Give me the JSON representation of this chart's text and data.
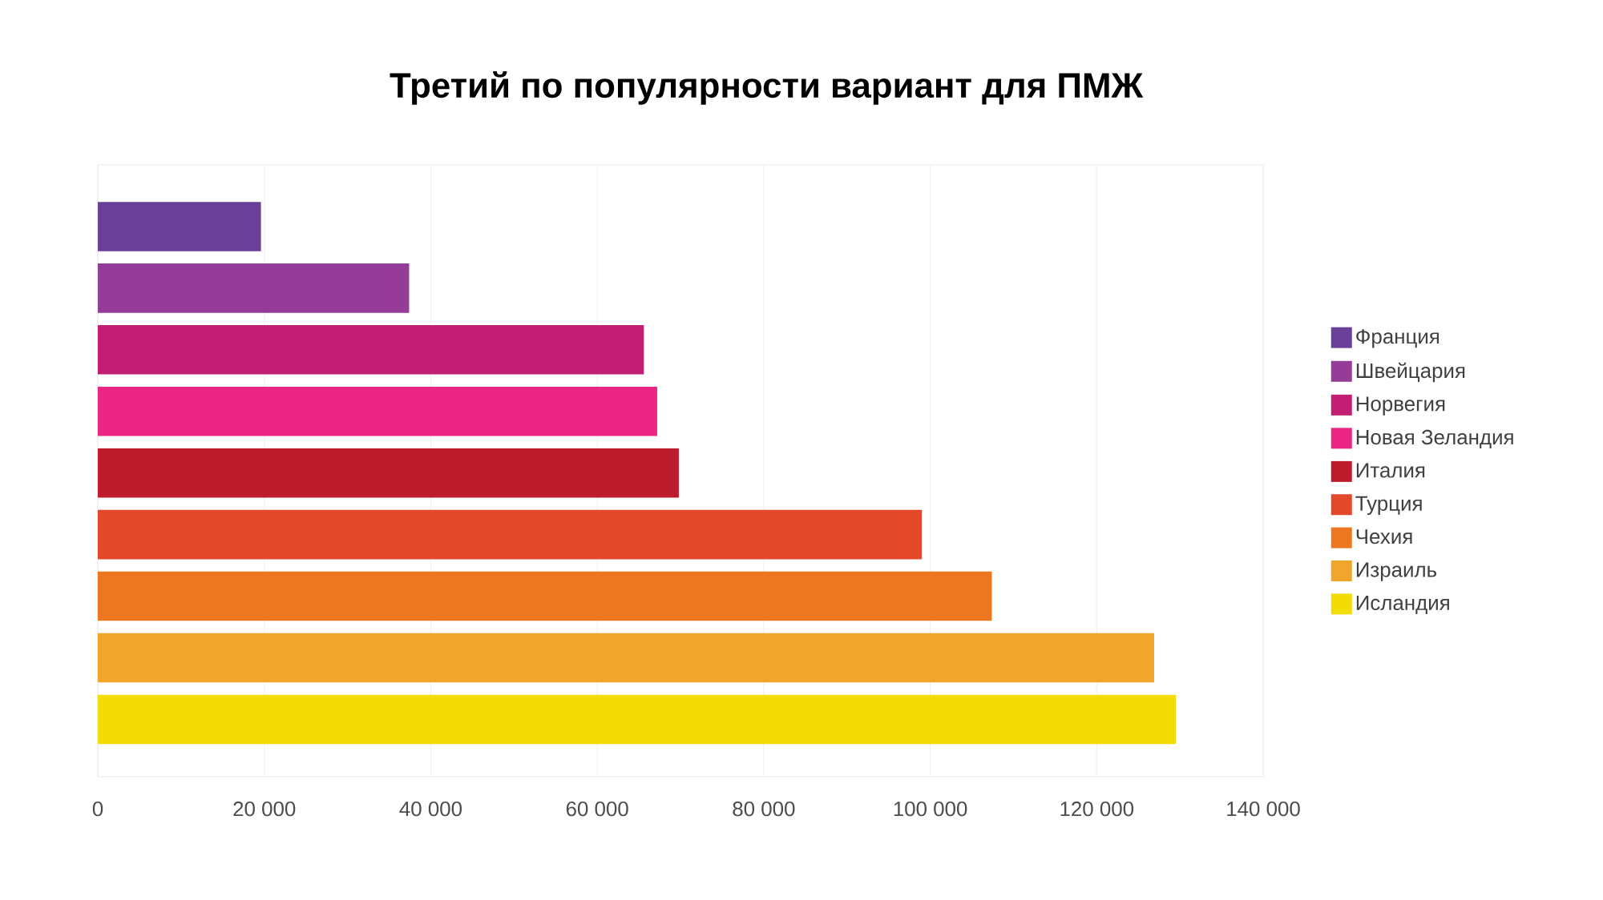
{
  "chart_data": {
    "type": "bar",
    "orientation": "horizontal",
    "title": "Третий по популярности вариант для ПМЖ",
    "categories": [
      null,
      null,
      null,
      null,
      null,
      null,
      null,
      null,
      null
    ],
    "series": [
      {
        "name": "Франция",
        "color": "#6a3f98",
        "values": [
          19600,
          null,
          null,
          null,
          null,
          null,
          null,
          null,
          null
        ]
      },
      {
        "name": "Швейцария",
        "color": "#953c98",
        "values": [
          null,
          37400,
          null,
          null,
          null,
          null,
          null,
          null,
          null
        ]
      },
      {
        "name": "Норвегия",
        "color": "#c21f74",
        "values": [
          null,
          null,
          65600,
          null,
          null,
          null,
          null,
          null,
          null
        ]
      },
      {
        "name": "Новая Зеландия",
        "color": "#ea2582",
        "values": [
          null,
          null,
          null,
          67200,
          null,
          null,
          null,
          null,
          null
        ]
      },
      {
        "name": "Италия",
        "color": "#bd1c2d",
        "values": [
          null,
          null,
          null,
          null,
          69800,
          null,
          null,
          null,
          null
        ]
      },
      {
        "name": "Турция",
        "color": "#e4482a",
        "values": [
          null,
          null,
          null,
          null,
          null,
          99000,
          null,
          null,
          null
        ]
      },
      {
        "name": "Чехия",
        "color": "#ec7720",
        "values": [
          null,
          null,
          null,
          null,
          null,
          null,
          107400,
          null,
          null
        ]
      },
      {
        "name": "Израиль",
        "color": "#f0a62a",
        "values": [
          null,
          null,
          null,
          null,
          null,
          null,
          null,
          126900,
          null
        ]
      },
      {
        "name": "Исландия",
        "color": "#f3dc04",
        "values": [
          null,
          null,
          null,
          null,
          null,
          null,
          null,
          null,
          129500
        ]
      }
    ],
    "xlim": [
      0,
      140000
    ],
    "xticks": [
      0,
      {
        "value": 20000,
        "label": "20 000"
      },
      {
        "value": 40000,
        "label": "40 000"
      },
      {
        "value": 60000,
        "label": "60 000"
      },
      {
        "value": 80000,
        "label": "80 000"
      },
      {
        "value": 100000,
        "label": "100 000"
      },
      {
        "value": 120000,
        "label": "120 000"
      },
      {
        "value": 140000,
        "label": "140 000"
      }
    ],
    "grid": "x",
    "legend": "right",
    "tick_labels": "x"
  }
}
